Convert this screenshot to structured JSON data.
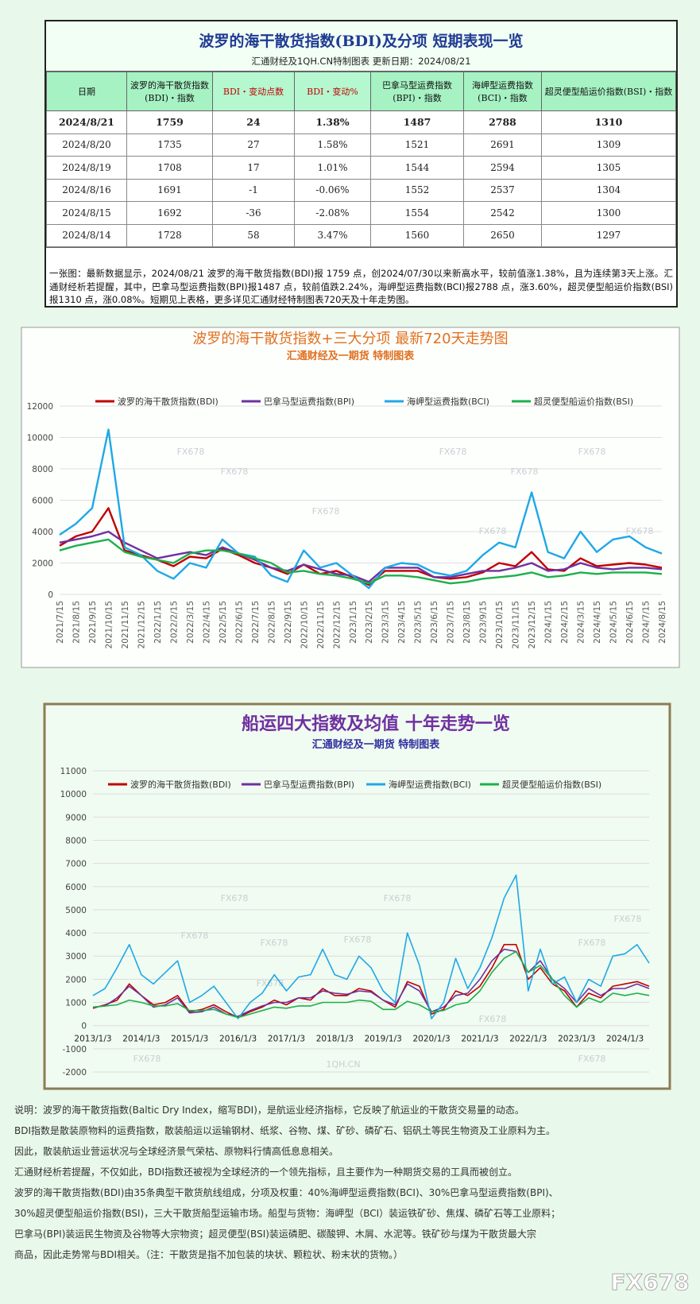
{
  "header": {
    "title": "波罗的海干散货指数(BDI)及分项  短期表现一览",
    "subtitle": "汇通财经及1QH.CN特制图表    更新日期：2024/08/21"
  },
  "table": {
    "columns": [
      "日期",
      "波罗的海干散货指数(BDI)・指数",
      "BDI・变动点数",
      "BDI・变动%",
      "巴拿马型运费指数(BPI)・指数",
      "海岬型运费指数(BCI)・指数",
      "超灵便型船运价指数(BSI)・指数"
    ],
    "rows": [
      [
        "2024/8/21",
        1759,
        24,
        "1.38%",
        1487,
        2788,
        1310
      ],
      [
        "2024/8/20",
        1735,
        27,
        "1.58%",
        1521,
        2691,
        1309
      ],
      [
        "2024/8/19",
        1708,
        17,
        "1.01%",
        1544,
        2594,
        1305
      ],
      [
        "2024/8/16",
        1691,
        -1,
        "-0.06%",
        1552,
        2537,
        1304
      ],
      [
        "2024/8/15",
        1692,
        -36,
        "-2.08%",
        1554,
        2542,
        1300
      ],
      [
        "2024/8/14",
        1728,
        58,
        "3.47%",
        1560,
        2650,
        1297
      ]
    ]
  },
  "note": "一张图：最新数据显示，2024/08/21 波罗的海干散货指数(BDI)报 1759 点，创2024/07/30以来新高水平，较前值涨1.38%，且为连续第3天上涨。汇通财经析若提醒，其中，巴拿马型运费指数(BPI)报1487 点，较前值跌2.24%，海岬型运费指数(BCI)报2788 点，涨3.60%，超灵便型船运价指数(BSI)报1310 点，涨0.08%。短期见上表格，更多详见汇通财经特制图表720天及十年走势图。",
  "chart_data": [
    {
      "type": "line",
      "title": "波罗的海干散货指数+三大分项  最新720天走势图",
      "subtitle": "汇通财经及一期货  特制图表",
      "categories": [
        "2021/7/15",
        "2021/8/15",
        "2021/9/15",
        "2021/10/15",
        "2021/11/15",
        "2021/12/15",
        "2022/1/15",
        "2022/2/15",
        "2022/3/15",
        "2022/4/15",
        "2022/5/15",
        "2022/6/15",
        "2022/7/15",
        "2022/8/15",
        "2022/9/15",
        "2022/10/15",
        "2022/11/15",
        "2022/12/15",
        "2023/1/15",
        "2023/2/15",
        "2023/3/15",
        "2023/4/15",
        "2023/5/15",
        "2023/6/15",
        "2023/7/15",
        "2023/8/15",
        "2023/9/15",
        "2023/10/15",
        "2023/11/15",
        "2023/12/15",
        "2024/1/15",
        "2024/2/15",
        "2024/3/15",
        "2024/4/15",
        "2024/5/15",
        "2024/6/15",
        "2024/7/15",
        "2024/8/15"
      ],
      "series": [
        {
          "name": "波罗的海干散货指数(BDI)",
          "color": "#c00000",
          "values": [
            3100,
            3700,
            4000,
            5500,
            2800,
            2500,
            2200,
            1800,
            2400,
            2300,
            2900,
            2500,
            2000,
            1700,
            1300,
            1900,
            1300,
            1500,
            1100,
            600,
            1500,
            1500,
            1500,
            1100,
            1000,
            1100,
            1400,
            2000,
            1800,
            2700,
            1600,
            1500,
            2300,
            1800,
            1900,
            2000,
            1900,
            1700
          ]
        },
        {
          "name": "巴拿马型运费指数(BPI)",
          "color": "#7030a0",
          "values": [
            3300,
            3500,
            3700,
            4000,
            3300,
            2800,
            2300,
            2500,
            2700,
            2500,
            3000,
            2600,
            2200,
            1700,
            1500,
            1900,
            1600,
            1300,
            1200,
            800,
            1700,
            1700,
            1700,
            1100,
            1100,
            1300,
            1500,
            1500,
            1700,
            2000,
            1500,
            1600,
            2000,
            1700,
            1600,
            1700,
            1700,
            1600
          ]
        },
        {
          "name": "海岬型运费指数(BCI)",
          "color": "#1fa8e6",
          "values": [
            3800,
            4500,
            5500,
            10500,
            3000,
            2500,
            1500,
            1000,
            2000,
            1700,
            3500,
            2600,
            2400,
            1200,
            800,
            2800,
            1700,
            2000,
            1200,
            400,
            1700,
            2000,
            1900,
            1400,
            1200,
            1500,
            2500,
            3300,
            3000,
            6500,
            2700,
            2300,
            4000,
            2700,
            3500,
            3700,
            3000,
            2600
          ]
        },
        {
          "name": "超灵便型船运价指数(BSI)",
          "color": "#1cb04a",
          "values": [
            2800,
            3100,
            3300,
            3500,
            2700,
            2400,
            2200,
            2000,
            2600,
            2800,
            2800,
            2600,
            2300,
            2000,
            1400,
            1500,
            1300,
            1200,
            1000,
            700,
            1200,
            1200,
            1100,
            900,
            700,
            800,
            1000,
            1100,
            1200,
            1400,
            1100,
            1200,
            1400,
            1300,
            1400,
            1400,
            1400,
            1300
          ]
        }
      ],
      "ylim": [
        0,
        12000
      ],
      "yticks": [
        0,
        2000,
        4000,
        6000,
        8000,
        10000,
        12000
      ],
      "grid": true
    },
    {
      "type": "line",
      "title": "船运四大指数及均值 十年走势一览",
      "subtitle": "汇通财经及一期货 特制图表",
      "categories": [
        "2013/1/3",
        null,
        null,
        null,
        "2014/1/3",
        null,
        null,
        null,
        "2015/1/3",
        null,
        null,
        null,
        "2016/1/3",
        null,
        null,
        null,
        "2017/1/3",
        null,
        null,
        null,
        "2018/1/3",
        null,
        null,
        null,
        "2019/1/3",
        null,
        null,
        null,
        "2020/1/3",
        null,
        null,
        null,
        "2021/1/3",
        null,
        null,
        null,
        "2022/1/3",
        null,
        null,
        null,
        "2023/1/3",
        null,
        null,
        null,
        "2024/1/3",
        null,
        null
      ],
      "series": [
        {
          "name": "波罗的海干散货指数(BDI)",
          "color": "#c00000",
          "values": [
            750,
            900,
            1100,
            1800,
            1300,
            900,
            1000,
            1300,
            600,
            700,
            900,
            600,
            350,
            600,
            800,
            1100,
            900,
            1200,
            1100,
            1600,
            1300,
            1300,
            1600,
            1500,
            1100,
            800,
            1900,
            1700,
            500,
            700,
            1500,
            1300,
            1700,
            2500,
            3500,
            3500,
            2000,
            2500,
            1800,
            1500,
            800,
            1400,
            1200,
            1700,
            1800,
            1900,
            1700
          ]
        },
        {
          "name": "巴拿马型运费指数(BPI)",
          "color": "#7030a0",
          "values": [
            800,
            850,
            1200,
            1700,
            1300,
            800,
            900,
            1200,
            550,
            600,
            800,
            500,
            400,
            650,
            850,
            1000,
            1000,
            1200,
            1200,
            1500,
            1400,
            1350,
            1500,
            1450,
            1100,
            900,
            1800,
            1500,
            600,
            800,
            1300,
            1400,
            2000,
            2800,
            3300,
            3200,
            2300,
            2800,
            2000,
            1600,
            1000,
            1600,
            1300,
            1600,
            1600,
            1800,
            1600
          ]
        },
        {
          "name": "海岬型运费指数(BCI)",
          "color": "#1fa8e6",
          "values": [
            1300,
            1600,
            2500,
            3500,
            2200,
            1800,
            2300,
            2800,
            1000,
            1300,
            1700,
            1000,
            300,
            1000,
            1400,
            2200,
            1500,
            2100,
            2200,
            3300,
            2200,
            2000,
            3000,
            2500,
            1500,
            1000,
            4000,
            2600,
            300,
            1000,
            2900,
            1600,
            2500,
            3800,
            5500,
            6500,
            1500,
            3300,
            1800,
            2100,
            1000,
            2000,
            1700,
            3000,
            3100,
            3500,
            2700
          ]
        },
        {
          "name": "超灵便型船运价指数(BSI)",
          "color": "#1cb04a",
          "values": [
            800,
            850,
            900,
            1100,
            1000,
            850,
            850,
            950,
            650,
            650,
            700,
            500,
            350,
            500,
            650,
            800,
            750,
            850,
            850,
            1000,
            1000,
            1000,
            1100,
            1050,
            700,
            700,
            1050,
            900,
            600,
            650,
            900,
            1000,
            1500,
            2300,
            2900,
            3200,
            2300,
            2600,
            2000,
            1300,
            800,
            1200,
            1000,
            1400,
            1300,
            1400,
            1300
          ]
        }
      ],
      "ylim": [
        -2000,
        11000
      ],
      "yticks": [
        -2000,
        -1000,
        0,
        1000,
        2000,
        3000,
        4000,
        5000,
        6000,
        7000,
        8000,
        9000,
        10000,
        11000
      ],
      "grid": true
    }
  ],
  "explanation": [
    "说明：波罗的海干散货指数(Baltic Dry Index，缩写BDI)，是航运业经济指标，它反映了航运业的干散货交易量的动态。",
    "BDI指数是散装原物料的运费指数，散装船运以运输钢材、纸浆、谷物、煤、矿砂、磷矿石、铝矾土等民生物资及工业原料为主。",
    "因此，散装航运业营运状况与全球经济景气荣枯、原物料行情高低息息相关。",
    "汇通财经析若提醒，不仅如此，BDI指数还被视为全球经济的一个领先指标，且主要作为一种期货交易的工具而被创立。",
    "波罗的海干散货指数(BDI)由35条典型干散货航线组成，分项及权重：40%海岬型运费指数(BCI)、30%巴拿马型运费指数(BPI)、",
    "30%超灵便型船运价指数(BSI)，三大干散货船型运输市场。船型与货物：海岬型（BCI）装运铁矿砂、焦煤、磷矿石等工业原料；",
    "巴拿马(BPI)装运民生物资及谷物等大宗物资；超灵便型(BSI)装运磷肥、碳酸钾、木屑、水泥等。铁矿砂与煤为干散货最大宗",
    "商品，因此走势常与BDI相关。（注：干散货是指不加包装的块状、颗粒状、粉末状的货物。）"
  ],
  "watermarks": [
    "FX678",
    "1QH.CN"
  ]
}
